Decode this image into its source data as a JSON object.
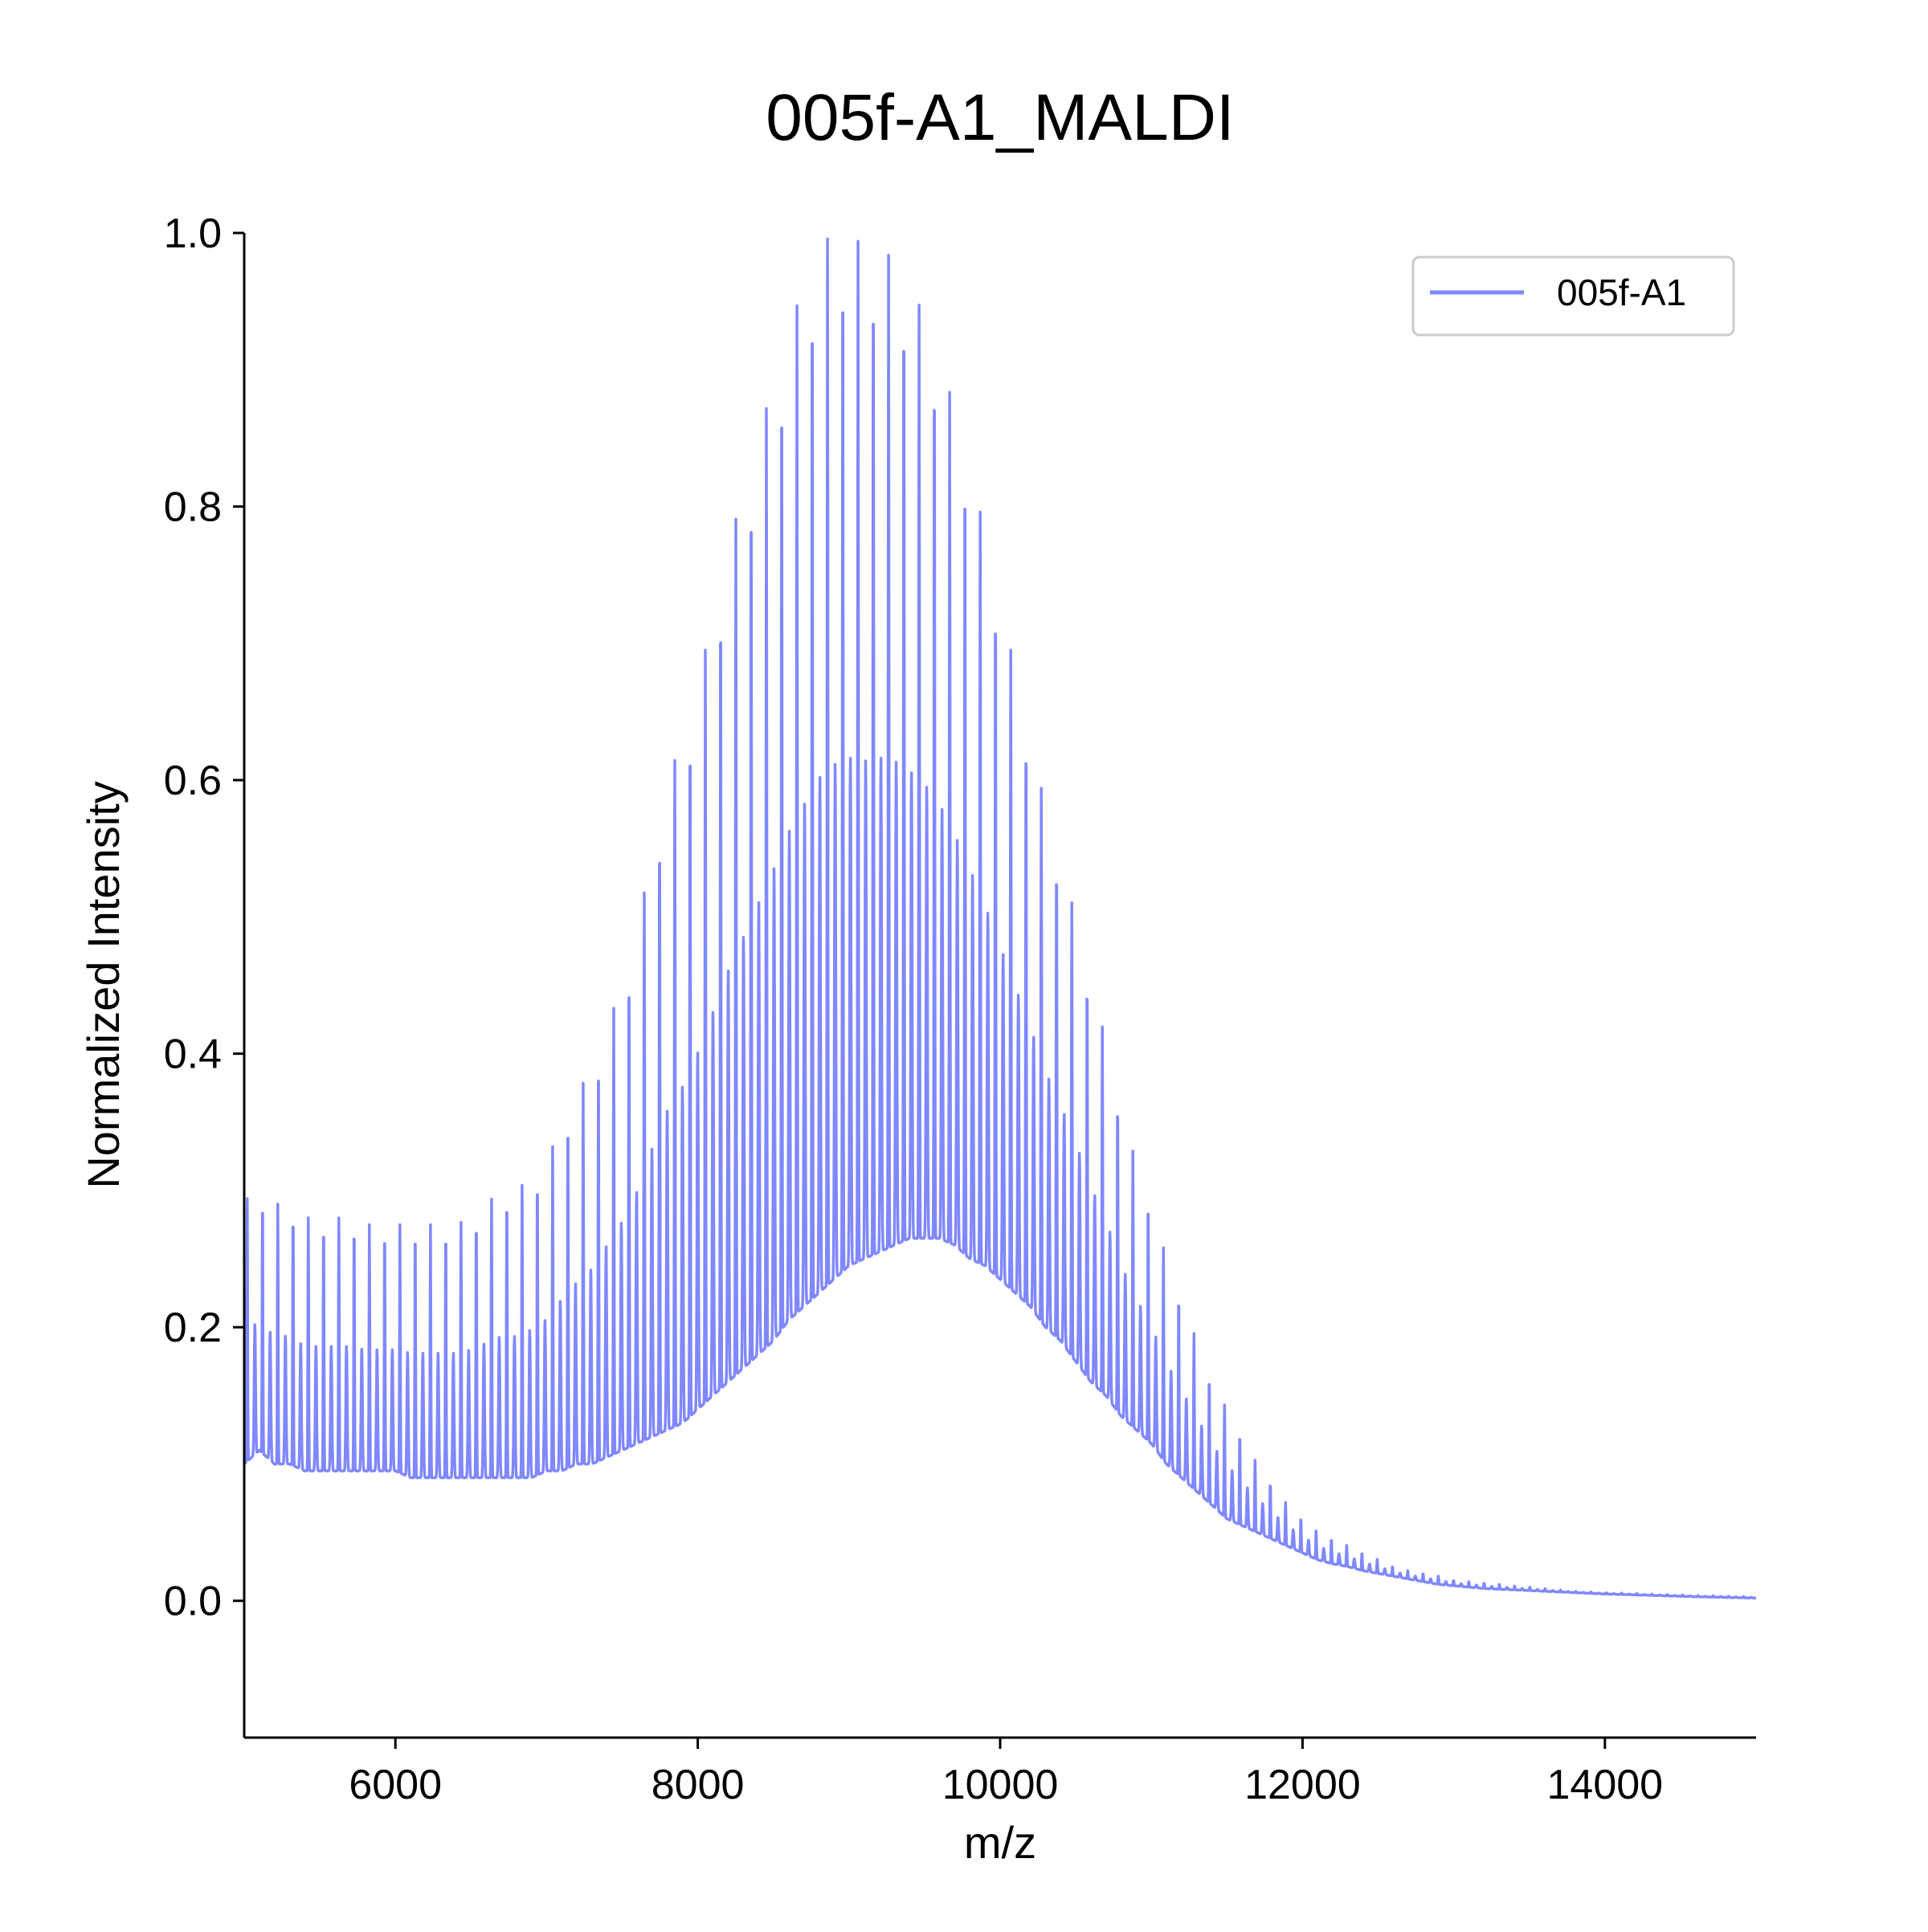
{
  "chart_data": {
    "type": "line",
    "title": "005f-A1_MALDI",
    "xlabel": "m/z",
    "ylabel": "Normalized Intensity",
    "xlim": [
      5000,
      15000
    ],
    "ylim": [
      -0.1,
      1.0
    ],
    "xticks": [
      6000,
      8000,
      10000,
      12000,
      14000
    ],
    "xtick_labels": [
      "6000",
      "8000",
      "10000",
      "12000",
      "14000"
    ],
    "yticks": [
      0.0,
      0.2,
      0.4,
      0.6,
      0.8,
      1.0
    ],
    "ytick_labels": [
      "0.0",
      "0.2",
      "0.4",
      "0.6",
      "0.8",
      "1.0"
    ],
    "grid": false,
    "legend_position": "top-right",
    "series": [
      {
        "name": "005f-A1",
        "color": "#8088ff",
        "description_points": {
          "x": [
            5000,
            5050,
            5100,
            5200,
            5300,
            5400,
            5500,
            5600,
            5700,
            5800,
            5900,
            6000,
            6100,
            6200,
            6300,
            6400,
            6500,
            6600,
            6700,
            6800,
            6900,
            7000,
            7100,
            7200,
            7300,
            7400,
            7500,
            7600,
            7700,
            7800,
            7900,
            8000,
            8100,
            8200,
            8300,
            8400,
            8500,
            8600,
            8700,
            8800,
            8900,
            9000,
            9100,
            9200,
            9300,
            9400,
            9500,
            9600,
            9700,
            9800,
            9900,
            10000,
            10100,
            10200,
            10300,
            10400,
            10500,
            10600,
            10700,
            10800,
            10900,
            11000,
            11100,
            11200,
            11300,
            11400,
            11500,
            11600,
            11700,
            11800,
            11900,
            12000,
            12100,
            12200,
            12300,
            12400,
            12500,
            12600,
            12700,
            12800,
            12900,
            13000,
            13200,
            13400,
            13600,
            13800,
            14000,
            14300,
            14600,
            15000
          ],
          "peak_y": [
            0.29,
            0.3,
            0.3,
            0.29,
            0.29,
            0.28,
            0.28,
            0.28,
            0.28,
            0.275,
            0.275,
            0.275,
            0.275,
            0.275,
            0.275,
            0.275,
            0.28,
            0.29,
            0.3,
            0.3,
            0.31,
            0.32,
            0.35,
            0.37,
            0.39,
            0.42,
            0.45,
            0.49,
            0.55,
            0.6,
            0.63,
            0.67,
            0.72,
            0.77,
            0.81,
            0.85,
            0.89,
            0.93,
            0.96,
            0.99,
            1.0,
            1.0,
            0.99,
            0.99,
            0.98,
            0.96,
            0.94,
            0.91,
            0.87,
            0.83,
            0.78,
            0.73,
            0.68,
            0.63,
            0.58,
            0.54,
            0.5,
            0.45,
            0.41,
            0.36,
            0.32,
            0.29,
            0.25,
            0.22,
            0.19,
            0.16,
            0.14,
            0.12,
            0.1,
            0.085,
            0.07,
            0.06,
            0.05,
            0.045,
            0.04,
            0.035,
            0.03,
            0.025,
            0.022,
            0.02,
            0.018,
            0.015,
            0.013,
            0.011,
            0.009,
            0.007,
            0.006,
            0.005,
            0.004,
            0.003
          ],
          "base_y": [
            0.1,
            0.105,
            0.11,
            0.1,
            0.1,
            0.095,
            0.095,
            0.095,
            0.095,
            0.095,
            0.095,
            0.095,
            0.09,
            0.09,
            0.09,
            0.09,
            0.09,
            0.09,
            0.09,
            0.09,
            0.09,
            0.095,
            0.095,
            0.1,
            0.1,
            0.105,
            0.11,
            0.115,
            0.12,
            0.125,
            0.13,
            0.14,
            0.15,
            0.16,
            0.17,
            0.18,
            0.19,
            0.205,
            0.215,
            0.225,
            0.235,
            0.245,
            0.25,
            0.255,
            0.26,
            0.265,
            0.265,
            0.265,
            0.26,
            0.25,
            0.245,
            0.235,
            0.225,
            0.215,
            0.2,
            0.19,
            0.175,
            0.16,
            0.15,
            0.135,
            0.125,
            0.115,
            0.1,
            0.09,
            0.08,
            0.07,
            0.06,
            0.055,
            0.05,
            0.045,
            0.04,
            0.035,
            0.03,
            0.027,
            0.025,
            0.022,
            0.02,
            0.018,
            0.016,
            0.014,
            0.012,
            0.011,
            0.009,
            0.008,
            0.007,
            0.006,
            0.005,
            0.004,
            0.003,
            0.002
          ]
        }
      }
    ]
  }
}
